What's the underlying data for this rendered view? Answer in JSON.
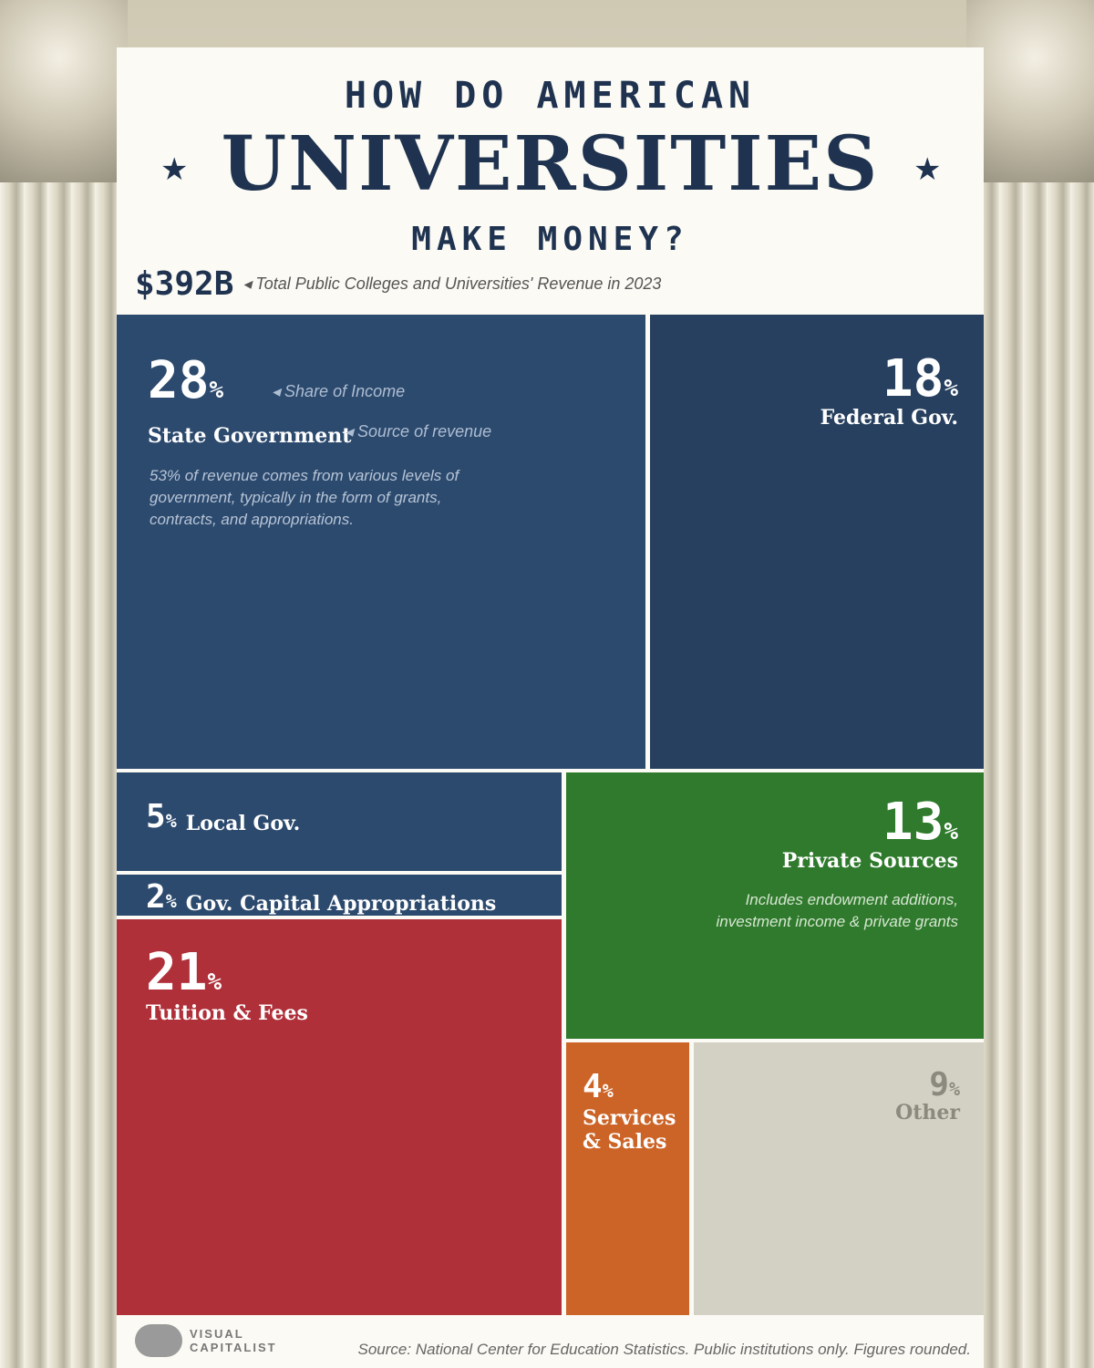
{
  "title": {
    "line1": "HOW DO AMERICAN",
    "line2": "UNIVERSITIES",
    "line3": "MAKE MONEY?"
  },
  "total": {
    "value": "$392B",
    "annotation": "◂ Total Public Colleges and Universities' Revenue in 2023"
  },
  "annotations": {
    "share": "◂ Share of Income",
    "source": "◂ Source of revenue"
  },
  "chart_data": {
    "type": "treemap",
    "unit": "%",
    "items": [
      {
        "label": "State Government",
        "value": 28,
        "color": "#2c4a6e",
        "note": "53% of revenue comes from various levels of government, typically in the form of grants, contracts, and appropriations."
      },
      {
        "label": "Federal Gov.",
        "value": 18,
        "color": "#27405f"
      },
      {
        "label": "Local Gov.",
        "value": 5,
        "color": "#2c4a6e"
      },
      {
        "label": "Gov. Capital Appropriations",
        "value": 2,
        "color": "#2c4a6e"
      },
      {
        "label": "Tuition & Fees",
        "value": 21,
        "color": "#b0303a"
      },
      {
        "label": "Private Sources",
        "value": 13,
        "color": "#2f7a2c",
        "note": "Includes endowment additions, investment income & private grants"
      },
      {
        "label": "Services & Sales",
        "value": 4,
        "color": "#cc6427"
      },
      {
        "label": "Other",
        "value": 9,
        "color": "#d3d1c3"
      }
    ]
  },
  "footer": {
    "logo_line1": "VISUAL",
    "logo_line2": "CAPITALIST",
    "source": "Source: National Center for Education Statistics. Public institutions only. Figures rounded."
  }
}
